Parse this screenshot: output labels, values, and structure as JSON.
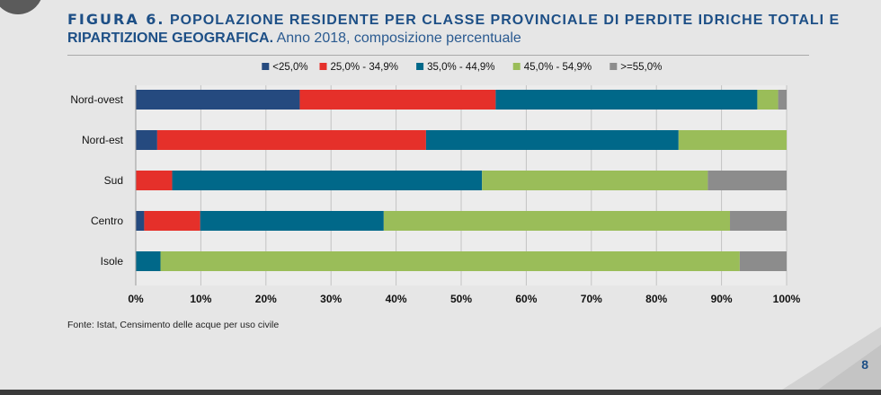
{
  "header": {
    "figure_label": "FIGURA 6.",
    "title_line1": "POPOLAZIONE RESIDENTE PER CLASSE PROVINCIALE DI PERDITE IDRICHE TOTALI E",
    "title_line2_bold": "RIPARTIZIONE GEOGRAFICA.",
    "title_line2_normal": "Anno 2018, composizione percentuale"
  },
  "source": "Fonte: Istat, Censimento delle acque per uso civile",
  "page_number": "8",
  "chart_data": {
    "type": "bar",
    "orientation": "horizontal",
    "stacked": true,
    "title": "",
    "xlabel": "",
    "ylabel": "",
    "xlim": [
      0,
      100
    ],
    "x_ticks": [
      "0%",
      "10%",
      "20%",
      "30%",
      "40%",
      "50%",
      "60%",
      "70%",
      "80%",
      "90%",
      "100%"
    ],
    "legend_position": "top",
    "grid": "vertical",
    "categories": [
      "Nord-ovest",
      "Nord-est",
      "Sud",
      "Centro",
      "Isole"
    ],
    "series": [
      {
        "name": "<25,0%",
        "color": "#254a7f",
        "values": [
          25.2,
          3.3,
          0.0,
          1.3,
          0.0
        ]
      },
      {
        "name": "25,0% - 34,9%",
        "color": "#e5302a",
        "values": [
          30.1,
          41.3,
          5.6,
          8.6,
          0.0
        ]
      },
      {
        "name": "35,0% - 44,9%",
        "color": "#006889",
        "values": [
          40.2,
          38.8,
          47.6,
          28.2,
          3.8
        ]
      },
      {
        "name": "45,0% - 54,9%",
        "color": "#9abd59",
        "values": [
          3.2,
          16.6,
          34.7,
          53.2,
          89.0
        ]
      },
      {
        "name": ">=55,0%",
        "color": "#8c8c8c",
        "values": [
          1.3,
          0.0,
          12.1,
          8.7,
          7.2
        ]
      }
    ]
  }
}
